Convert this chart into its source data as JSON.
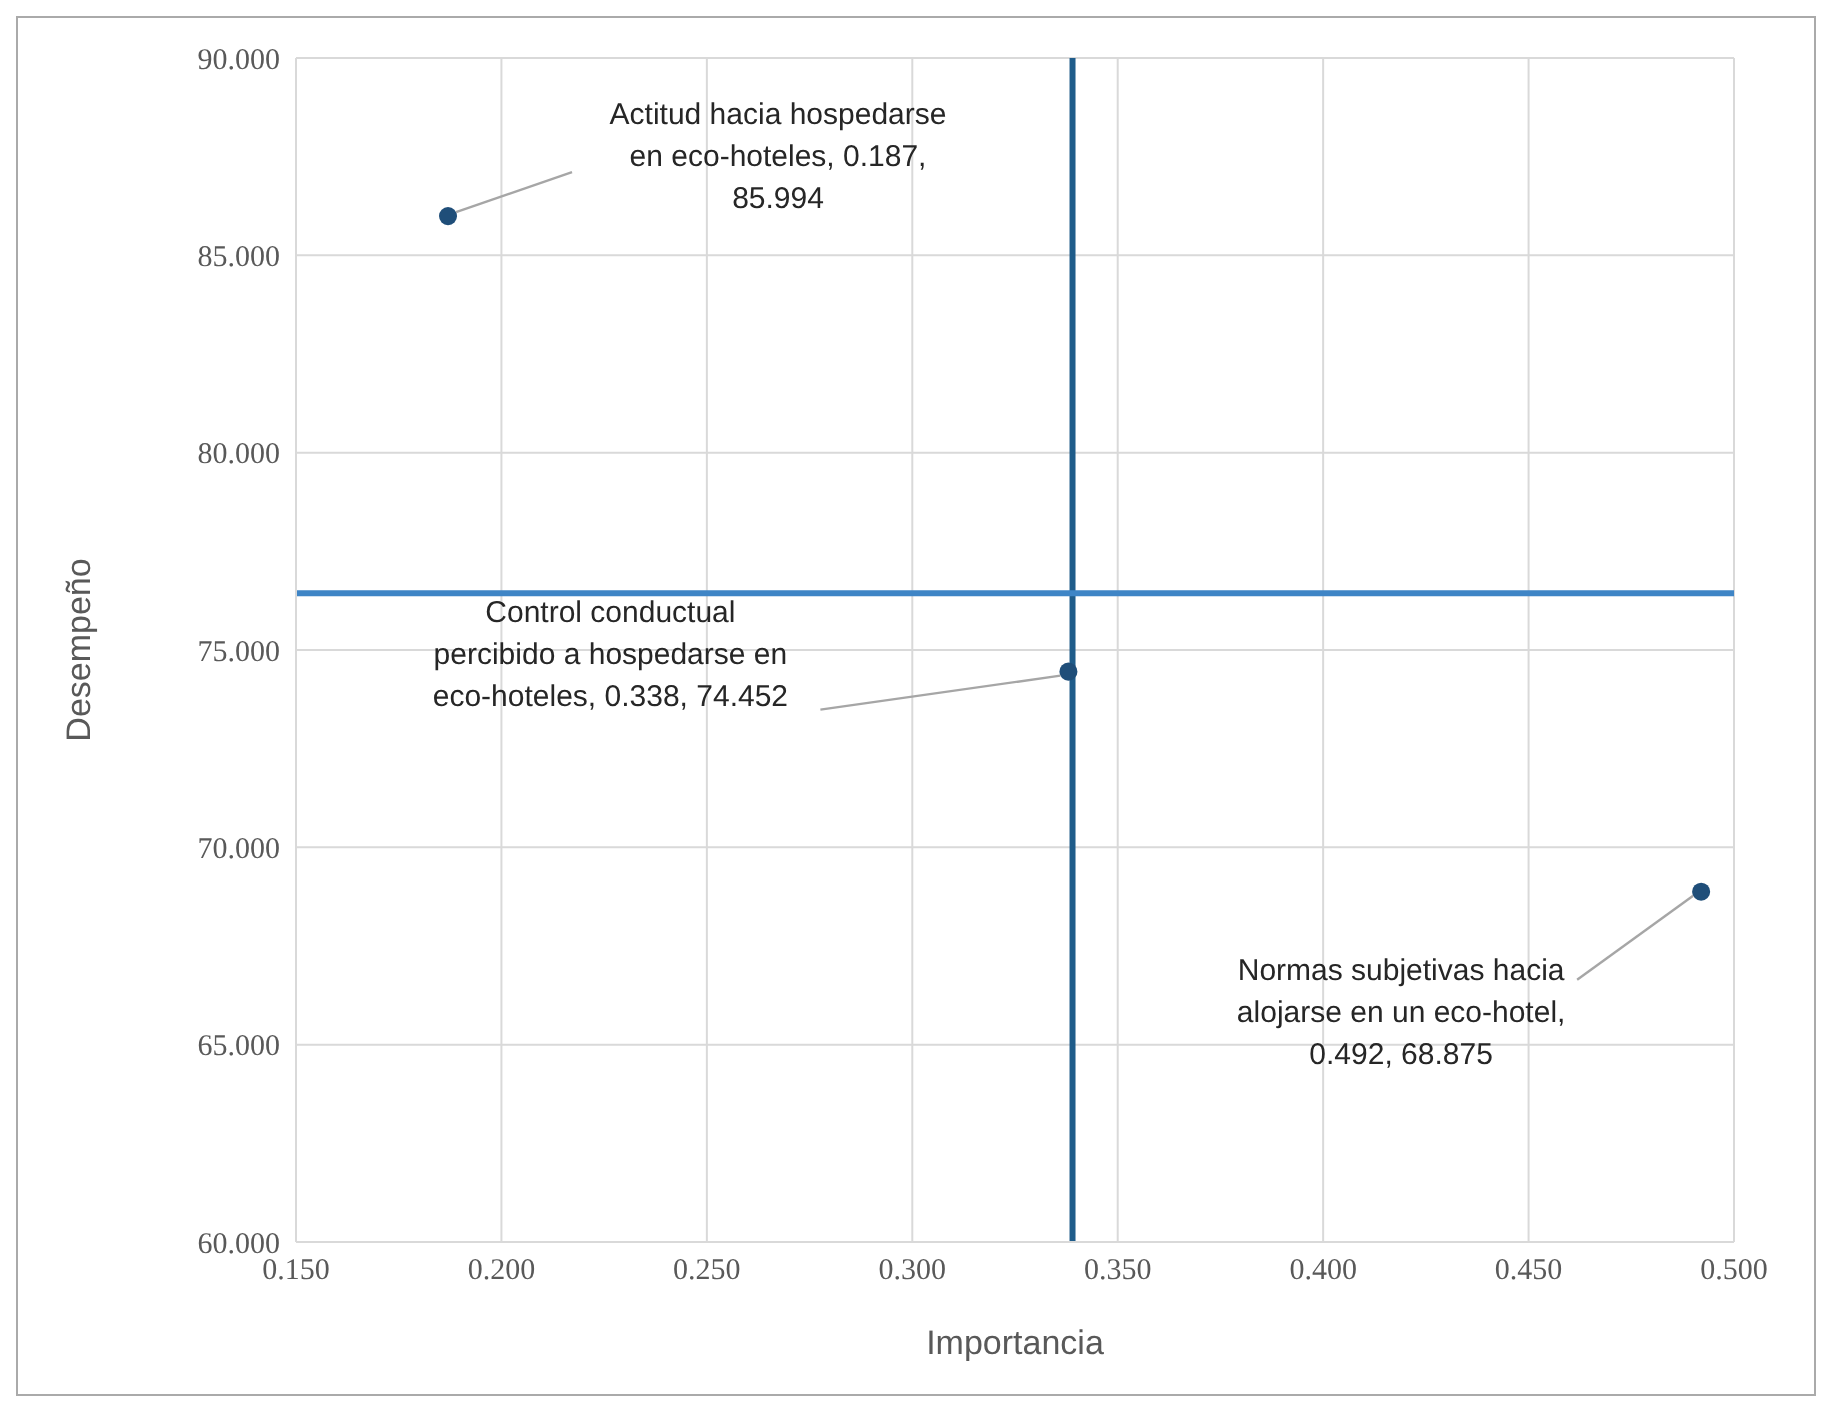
{
  "chart_data": {
    "type": "scatter",
    "xlabel": "Importancia",
    "ylabel": "Desempeño",
    "x": [
      0.187,
      0.338,
      0.492
    ],
    "values": [
      85.994,
      74.452,
      68.875
    ],
    "color": "#1f4e79",
    "marker": "circle",
    "grid": true,
    "xlim": [
      0.15,
      0.5
    ],
    "xticks": [
      {
        "value": 0.15,
        "label": "0.150"
      },
      {
        "value": 0.2,
        "label": "0.200"
      },
      {
        "value": 0.25,
        "label": "0.250"
      },
      {
        "value": 0.3,
        "label": "0.300"
      },
      {
        "value": 0.35,
        "label": "0.350"
      },
      {
        "value": 0.4,
        "label": "0.400"
      },
      {
        "value": 0.45,
        "label": "0.450"
      },
      {
        "value": 0.5,
        "label": "0.500"
      }
    ],
    "ylim": [
      60,
      90
    ],
    "yticks": [
      {
        "value": 60,
        "label": "60.000"
      },
      {
        "value": 65,
        "label": "65.000"
      },
      {
        "value": 70,
        "label": "70.000"
      },
      {
        "value": 75,
        "label": "75.000"
      },
      {
        "value": 80,
        "label": "80.000"
      },
      {
        "value": 85,
        "label": "85.000"
      },
      {
        "value": 90,
        "label": "90.000"
      }
    ],
    "ref_lines": [
      {
        "axis": "x",
        "value": 0.339,
        "color": "#1f5c8a"
      },
      {
        "axis": "y",
        "value": 76.44,
        "color": "#3e85c6"
      }
    ],
    "annotations": [
      {
        "text": "Actitud hacia hospedarse en eco-hoteles, 0.187, 85.994",
        "x": 0.187,
        "y": 85.994
      },
      {
        "text": "Control conductual percibido a hospedarse en eco-hoteles, 0.338, 74.452",
        "x": 0.338,
        "y": 74.452
      },
      {
        "text": "Normas subjetivas hacia alojarse en un eco-hotel, 0.492, 68.875",
        "x": 0.492,
        "y": 68.875
      }
    ]
  }
}
